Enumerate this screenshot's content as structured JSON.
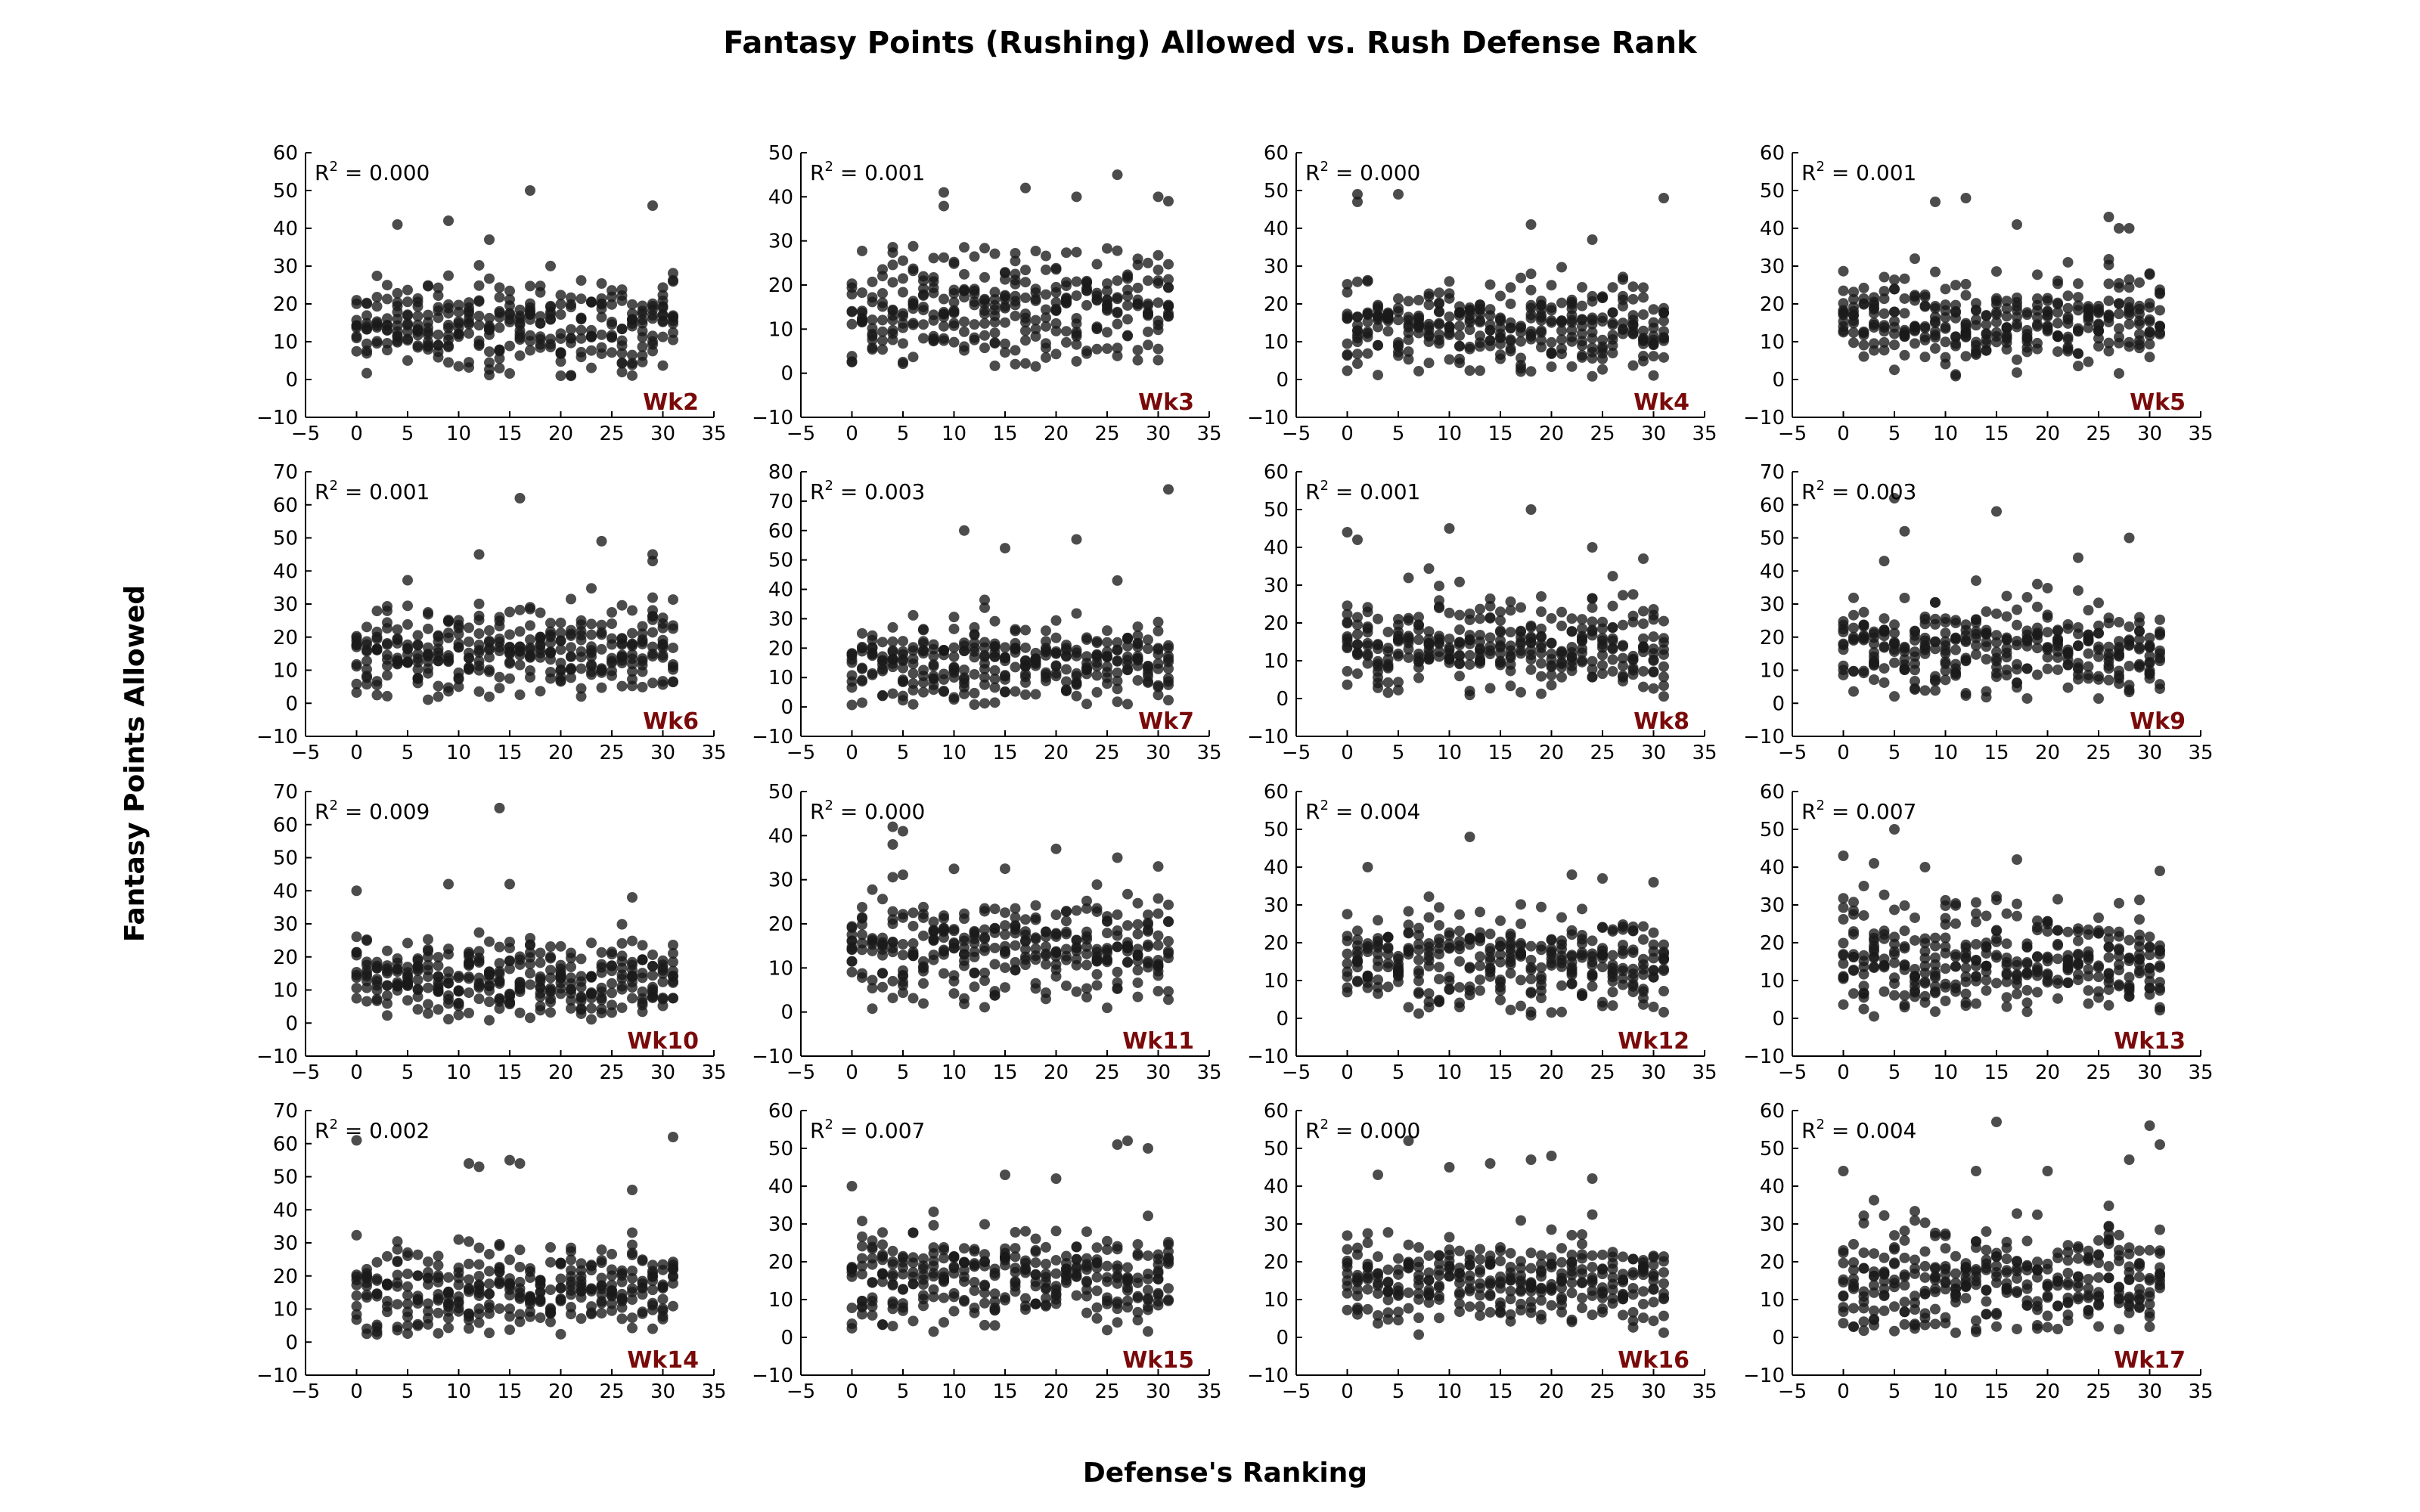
{
  "figure": {
    "title": "Fantasy Points (Rushing) Allowed vs. Rush Defense Rank",
    "xlabel": "Defense's Ranking",
    "ylabel": "Fantasy Points Allowed",
    "label_color": "#7a0a0a",
    "point_color": "#1a1a1a"
  },
  "chart_data": [
    {
      "type": "scatter",
      "label": "Wk2",
      "r2_text": "0.000",
      "xlim": [
        -5,
        35
      ],
      "ylim": [
        -10,
        60
      ],
      "xticks": [
        -5,
        0,
        5,
        10,
        15,
        20,
        25,
        30,
        35
      ],
      "yticks": [
        -10,
        0,
        10,
        20,
        30,
        40,
        50,
        60
      ],
      "center": 15,
      "spread": 7,
      "outliers": [
        [
          4,
          41
        ],
        [
          9,
          42
        ],
        [
          17,
          50
        ],
        [
          29,
          46
        ],
        [
          13,
          37
        ],
        [
          20,
          1
        ]
      ]
    },
    {
      "type": "scatter",
      "label": "Wk3",
      "r2_text": "0.001",
      "xlim": [
        -5,
        35
      ],
      "ylim": [
        -10,
        50
      ],
      "xticks": [
        -5,
        0,
        5,
        10,
        15,
        20,
        25,
        30,
        35
      ],
      "yticks": [
        -10,
        0,
        10,
        20,
        30,
        40,
        50
      ],
      "center": 15,
      "spread": 8,
      "outliers": [
        [
          9,
          41
        ],
        [
          17,
          42
        ],
        [
          22,
          40
        ],
        [
          26,
          45
        ],
        [
          30,
          40
        ],
        [
          31,
          39
        ]
      ]
    },
    {
      "type": "scatter",
      "label": "Wk4",
      "r2_text": "0.000",
      "xlim": [
        -5,
        35
      ],
      "ylim": [
        -10,
        60
      ],
      "xticks": [
        -5,
        0,
        5,
        10,
        15,
        20,
        25,
        30,
        35
      ],
      "yticks": [
        -10,
        0,
        10,
        20,
        30,
        40,
        50,
        60
      ],
      "center": 14,
      "spread": 7,
      "outliers": [
        [
          1,
          49
        ],
        [
          1,
          47
        ],
        [
          5,
          49
        ],
        [
          18,
          41
        ],
        [
          31,
          48
        ],
        [
          24,
          37
        ]
      ]
    },
    {
      "type": "scatter",
      "label": "Wk5",
      "r2_text": "0.001",
      "xlim": [
        -5,
        35
      ],
      "ylim": [
        -10,
        60
      ],
      "xticks": [
        -5,
        0,
        5,
        10,
        15,
        20,
        25,
        30,
        35
      ],
      "yticks": [
        -10,
        0,
        10,
        20,
        30,
        40,
        50,
        60
      ],
      "center": 15,
      "spread": 7,
      "outliers": [
        [
          9,
          47
        ],
        [
          12,
          48
        ],
        [
          17,
          41
        ],
        [
          26,
          43
        ],
        [
          27,
          40
        ],
        [
          28,
          40
        ]
      ]
    },
    {
      "type": "scatter",
      "label": "Wk6",
      "r2_text": "0.001",
      "xlim": [
        -5,
        35
      ],
      "ylim": [
        -10,
        70
      ],
      "xticks": [
        -5,
        0,
        5,
        10,
        15,
        20,
        25,
        30,
        35
      ],
      "yticks": [
        -10,
        0,
        10,
        20,
        30,
        40,
        50,
        60,
        70
      ],
      "center": 15,
      "spread": 8,
      "outliers": [
        [
          16,
          62
        ],
        [
          24,
          49
        ],
        [
          29,
          45
        ],
        [
          12,
          45
        ],
        [
          29,
          43
        ]
      ]
    },
    {
      "type": "scatter",
      "label": "Wk7",
      "r2_text": "0.003",
      "xlim": [
        -5,
        35
      ],
      "ylim": [
        -10,
        80
      ],
      "xticks": [
        -5,
        0,
        5,
        10,
        15,
        20,
        25,
        30,
        35
      ],
      "yticks": [
        -10,
        0,
        10,
        20,
        30,
        40,
        50,
        60,
        70,
        80
      ],
      "center": 15,
      "spread": 8,
      "outliers": [
        [
          31,
          74
        ],
        [
          11,
          60
        ],
        [
          22,
          57
        ],
        [
          15,
          54
        ],
        [
          26,
          43
        ]
      ]
    },
    {
      "type": "scatter",
      "label": "Wk8",
      "r2_text": "0.001",
      "xlim": [
        -5,
        35
      ],
      "ylim": [
        -10,
        60
      ],
      "xticks": [
        -5,
        0,
        5,
        10,
        15,
        20,
        25,
        30,
        35
      ],
      "yticks": [
        -10,
        0,
        10,
        20,
        30,
        40,
        50,
        60
      ],
      "center": 14,
      "spread": 7,
      "outliers": [
        [
          0,
          44
        ],
        [
          1,
          42
        ],
        [
          10,
          45
        ],
        [
          18,
          50
        ],
        [
          24,
          40
        ],
        [
          29,
          37
        ]
      ]
    },
    {
      "type": "scatter",
      "label": "Wk9",
      "r2_text": "0.003",
      "xlim": [
        -5,
        35
      ],
      "ylim": [
        -10,
        70
      ],
      "xticks": [
        -5,
        0,
        5,
        10,
        15,
        20,
        25,
        30,
        35
      ],
      "yticks": [
        -10,
        0,
        10,
        20,
        30,
        40,
        50,
        60,
        70
      ],
      "center": 16,
      "spread": 8,
      "outliers": [
        [
          5,
          62
        ],
        [
          6,
          52
        ],
        [
          15,
          58
        ],
        [
          28,
          50
        ],
        [
          4,
          43
        ],
        [
          23,
          44
        ]
      ]
    },
    {
      "type": "scatter",
      "label": "Wk10",
      "r2_text": "0.009",
      "xlim": [
        -5,
        35
      ],
      "ylim": [
        -10,
        70
      ],
      "xticks": [
        -5,
        0,
        5,
        10,
        15,
        20,
        25,
        30,
        35
      ],
      "yticks": [
        -10,
        0,
        10,
        20,
        30,
        40,
        50,
        60,
        70
      ],
      "center": 14,
      "spread": 7,
      "outliers": [
        [
          14,
          65
        ],
        [
          0,
          40
        ],
        [
          9,
          42
        ],
        [
          15,
          42
        ],
        [
          27,
          38
        ]
      ]
    },
    {
      "type": "scatter",
      "label": "Wk11",
      "r2_text": "0.000",
      "xlim": [
        -5,
        35
      ],
      "ylim": [
        -10,
        50
      ],
      "xticks": [
        -5,
        0,
        5,
        10,
        15,
        20,
        25,
        30,
        35
      ],
      "yticks": [
        -10,
        0,
        10,
        20,
        30,
        40,
        50
      ],
      "center": 15,
      "spread": 7,
      "outliers": [
        [
          4,
          42
        ],
        [
          4,
          38
        ],
        [
          5,
          41
        ],
        [
          20,
          37
        ],
        [
          26,
          35
        ],
        [
          30,
          33
        ]
      ]
    },
    {
      "type": "scatter",
      "label": "Wk12",
      "r2_text": "0.004",
      "xlim": [
        -5,
        35
      ],
      "ylim": [
        -10,
        60
      ],
      "xticks": [
        -5,
        0,
        5,
        10,
        15,
        20,
        25,
        30,
        35
      ],
      "yticks": [
        -10,
        0,
        10,
        20,
        30,
        40,
        50,
        60
      ],
      "center": 15,
      "spread": 7,
      "outliers": [
        [
          12,
          48
        ],
        [
          2,
          40
        ],
        [
          22,
          38
        ],
        [
          25,
          37
        ],
        [
          30,
          36
        ]
      ]
    },
    {
      "type": "scatter",
      "label": "Wk13",
      "r2_text": "0.007",
      "xlim": [
        -5,
        35
      ],
      "ylim": [
        -10,
        60
      ],
      "xticks": [
        -5,
        0,
        5,
        10,
        15,
        20,
        25,
        30,
        35
      ],
      "yticks": [
        -10,
        0,
        10,
        20,
        30,
        40,
        50,
        60
      ],
      "center": 15,
      "spread": 8,
      "outliers": [
        [
          5,
          50
        ],
        [
          0,
          43
        ],
        [
          3,
          41
        ],
        [
          8,
          40
        ],
        [
          17,
          42
        ],
        [
          31,
          39
        ]
      ]
    },
    {
      "type": "scatter",
      "label": "Wk14",
      "r2_text": "0.002",
      "xlim": [
        -5,
        35
      ],
      "ylim": [
        -10,
        70
      ],
      "xticks": [
        -5,
        0,
        5,
        10,
        15,
        20,
        25,
        30,
        35
      ],
      "yticks": [
        -10,
        0,
        10,
        20,
        30,
        40,
        50,
        60,
        70
      ],
      "center": 15,
      "spread": 8,
      "outliers": [
        [
          0,
          61
        ],
        [
          31,
          62
        ],
        [
          11,
          54
        ],
        [
          12,
          53
        ],
        [
          15,
          55
        ],
        [
          16,
          54
        ],
        [
          27,
          46
        ]
      ]
    },
    {
      "type": "scatter",
      "label": "Wk15",
      "r2_text": "0.007",
      "xlim": [
        -5,
        35
      ],
      "ylim": [
        -10,
        60
      ],
      "xticks": [
        -5,
        0,
        5,
        10,
        15,
        20,
        25,
        30,
        35
      ],
      "yticks": [
        -10,
        0,
        10,
        20,
        30,
        40,
        50,
        60
      ],
      "center": 16,
      "spread": 7,
      "outliers": [
        [
          26,
          51
        ],
        [
          27,
          52
        ],
        [
          29,
          50
        ],
        [
          15,
          43
        ],
        [
          20,
          42
        ],
        [
          0,
          40
        ]
      ]
    },
    {
      "type": "scatter",
      "label": "Wk16",
      "r2_text": "0.000",
      "xlim": [
        -5,
        35
      ],
      "ylim": [
        -10,
        60
      ],
      "xticks": [
        -5,
        0,
        5,
        10,
        15,
        20,
        25,
        30,
        35
      ],
      "yticks": [
        -10,
        0,
        10,
        20,
        30,
        40,
        50,
        60
      ],
      "center": 15,
      "spread": 7,
      "outliers": [
        [
          6,
          52
        ],
        [
          10,
          45
        ],
        [
          14,
          46
        ],
        [
          18,
          47
        ],
        [
          20,
          48
        ],
        [
          3,
          43
        ],
        [
          24,
          42
        ]
      ]
    },
    {
      "type": "scatter",
      "label": "Wk17",
      "r2_text": "0.004",
      "xlim": [
        -5,
        35
      ],
      "ylim": [
        -10,
        60
      ],
      "xticks": [
        -5,
        0,
        5,
        10,
        15,
        20,
        25,
        30,
        35
      ],
      "yticks": [
        -10,
        0,
        10,
        20,
        30,
        40,
        50,
        60
      ],
      "center": 15,
      "spread": 8,
      "outliers": [
        [
          15,
          57
        ],
        [
          30,
          56
        ],
        [
          31,
          51
        ],
        [
          28,
          47
        ],
        [
          0,
          44
        ],
        [
          13,
          44
        ],
        [
          20,
          44
        ]
      ]
    }
  ]
}
